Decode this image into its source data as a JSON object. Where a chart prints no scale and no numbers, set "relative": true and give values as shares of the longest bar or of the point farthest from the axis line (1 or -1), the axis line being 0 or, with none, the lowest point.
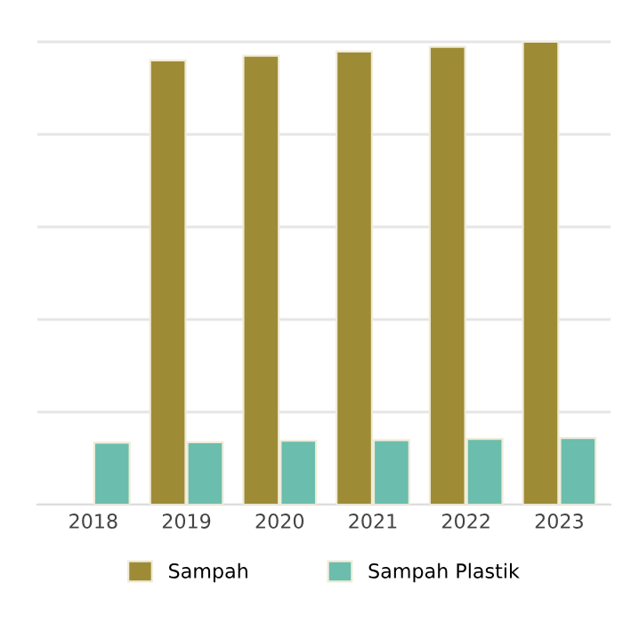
{
  "chart_data": {
    "type": "bar",
    "relative": true,
    "categories": [
      "2018",
      "2019",
      "2020",
      "2021",
      "2022",
      "2023"
    ],
    "series": [
      {
        "name": "Sampah",
        "color": "#9e8b36",
        "values": [
          null,
          0.96,
          0.97,
          0.979,
          0.989,
          1
        ]
      },
      {
        "name": "Sampah Plastik",
        "color": "#6bbdad",
        "values": [
          0.134,
          0.135,
          0.138,
          0.139,
          0.142,
          0.144
        ]
      }
    ],
    "grid": "y",
    "legend": "bottom"
  }
}
